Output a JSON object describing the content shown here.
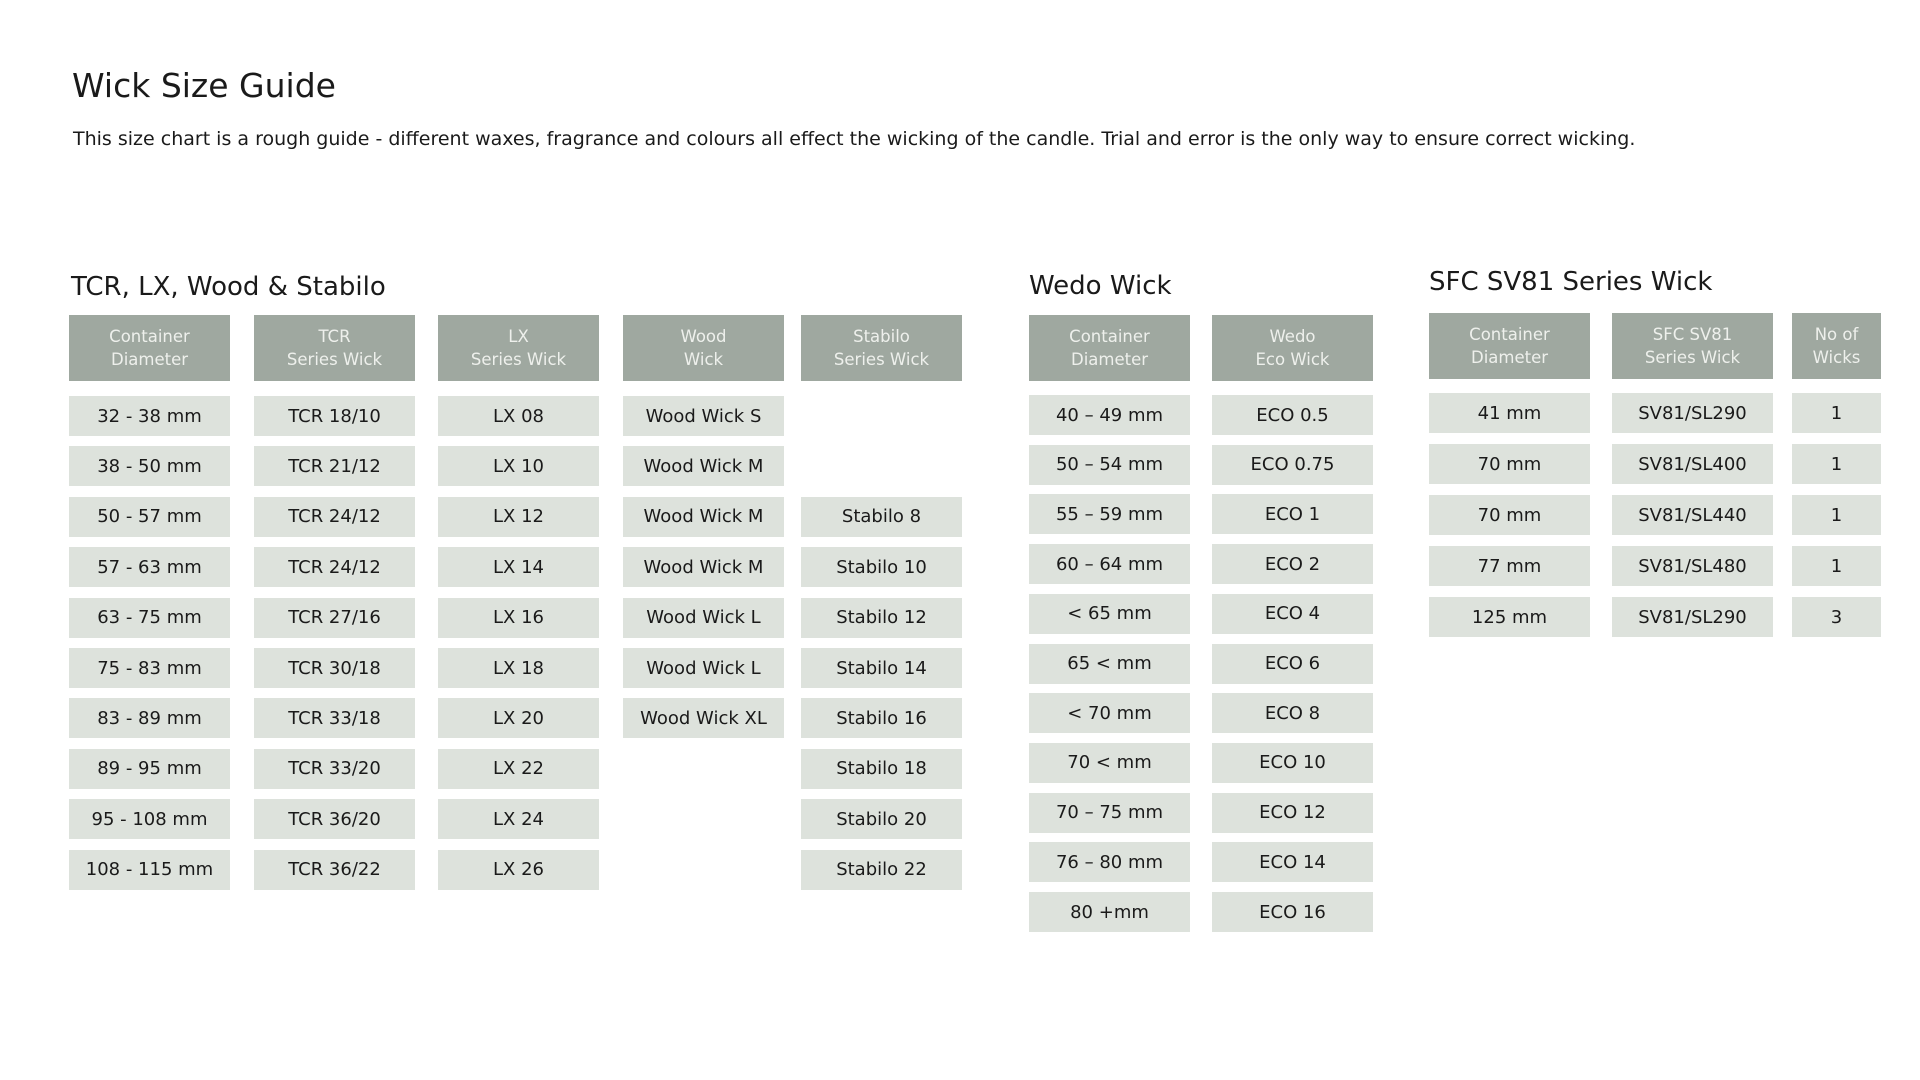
{
  "page": {
    "title": "Wick Size Guide",
    "description": "This size chart is a rough guide - different waxes, fragrance and colours all effect the wicking of the candle. Trial and error is the only way to ensure correct wicking."
  },
  "colors": {
    "header_bg": "#9fa8a0",
    "cell_bg": "#dde2dc"
  },
  "groups": [
    {
      "title": "TCR, LX, Wood & Stabilo",
      "columns": [
        {
          "header": [
            "Container",
            "Diameter"
          ],
          "cells": [
            "32 - 38 mm",
            "38 - 50 mm",
            "50 - 57 mm",
            "57 - 63 mm",
            "63 - 75 mm",
            "75 - 83 mm",
            "83 - 89 mm",
            "89 - 95 mm",
            "95 - 108 mm",
            "108 - 115 mm"
          ]
        },
        {
          "header": [
            "TCR",
            "Series Wick"
          ],
          "cells": [
            "TCR 18/10",
            "TCR 21/12",
            "TCR 24/12",
            "TCR 24/12",
            "TCR 27/16",
            "TCR 30/18",
            "TCR 33/18",
            "TCR 33/20",
            "TCR 36/20",
            "TCR 36/22"
          ]
        },
        {
          "header": [
            "LX",
            "Series Wick"
          ],
          "cells": [
            "LX 08",
            "LX 10",
            "LX 12",
            "LX 14",
            "LX 16",
            "LX 18",
            "LX 20",
            "LX 22",
            "LX 24",
            "LX 26"
          ]
        },
        {
          "header": [
            "Wood",
            "Wick"
          ],
          "cells": [
            "Wood Wick S",
            "Wood Wick M",
            "Wood Wick M",
            "Wood Wick M",
            "Wood Wick L",
            "Wood Wick L",
            "Wood Wick XL"
          ]
        },
        {
          "header": [
            "Stabilo",
            "Series Wick"
          ],
          "cells": [
            null,
            null,
            "Stabilo 8",
            "Stabilo 10",
            "Stabilo 12",
            "Stabilo 14",
            "Stabilo 16",
            "Stabilo 18",
            "Stabilo 20",
            "Stabilo 22"
          ]
        }
      ]
    },
    {
      "title": "Wedo Wick",
      "columns": [
        {
          "header": [
            "Container",
            "Diameter"
          ],
          "cells": [
            "40 – 49 mm",
            "50 – 54 mm",
            "55 – 59 mm",
            "60 – 64 mm",
            "< 65 mm",
            "65 < mm",
            "< 70 mm",
            "70 < mm",
            "70 – 75 mm",
            "76 – 80 mm",
            "80 +mm"
          ]
        },
        {
          "header": [
            "Wedo",
            "Eco Wick"
          ],
          "cells": [
            "ECO 0.5",
            "ECO 0.75",
            "ECO 1",
            "ECO 2",
            "ECO 4",
            "ECO 6",
            "ECO 8",
            "ECO 10",
            "ECO 12",
            "ECO 14",
            "ECO 16"
          ]
        }
      ]
    },
    {
      "title": "SFC SV81 Series Wick",
      "columns": [
        {
          "header": [
            "Container",
            "Diameter"
          ],
          "cells": [
            "41 mm",
            "70 mm",
            "70 mm",
            "77 mm",
            "125 mm"
          ]
        },
        {
          "header": [
            "SFC SV81",
            "Series Wick"
          ],
          "cells": [
            "SV81/SL290",
            "SV81/SL400",
            "SV81/SL440",
            "SV81/SL480",
            "SV81/SL290"
          ]
        },
        {
          "header": [
            "No of",
            "Wicks"
          ],
          "cells": [
            "1",
            "1",
            "1",
            "1",
            "3"
          ]
        }
      ]
    }
  ]
}
